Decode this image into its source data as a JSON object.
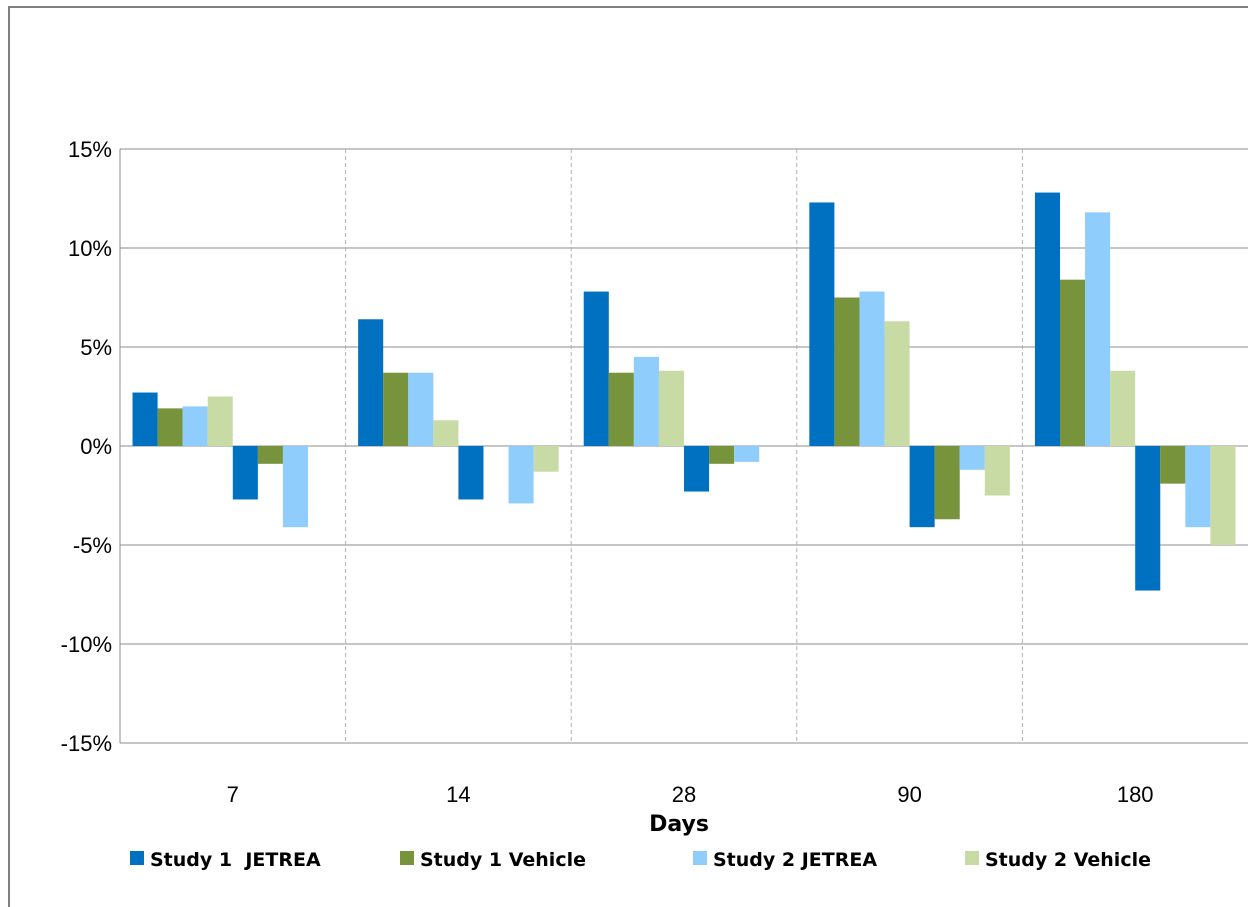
{
  "chart_data": {
    "type": "bar",
    "title": "",
    "xlabel": "Days",
    "ylabel": "",
    "categories": [
      "7",
      "14",
      "28",
      "90",
      "180"
    ],
    "ylim": [
      -15,
      15
    ],
    "ytick_values": [
      15,
      10,
      5,
      0,
      -5,
      -10,
      -15
    ],
    "ytick_labels": [
      "15%",
      "10%",
      "5%",
      "0%",
      "-5%",
      "-10%",
      "-15%"
    ],
    "grid": "horizontal major, vertical dashed category separators",
    "legend_position": "bottom",
    "bars_per_group": 8,
    "series": [
      {
        "name": "Study 1  JETREA",
        "color": "#0070c0",
        "positive": [
          2.7,
          6.4,
          7.8,
          12.3,
          12.8
        ],
        "negative": [
          -2.7,
          -2.7,
          -2.3,
          -4.1,
          -7.3
        ]
      },
      {
        "name": "Study 1 Vehicle",
        "color": "#77933c",
        "positive": [
          1.9,
          3.7,
          3.7,
          7.5,
          8.4
        ],
        "negative": [
          -0.9,
          null,
          -0.9,
          -3.7,
          -1.9
        ]
      },
      {
        "name": "Study 2 JETREA",
        "color": "#8ecdfc",
        "positive": [
          2.0,
          3.7,
          4.5,
          7.8,
          11.8
        ],
        "negative": [
          -4.1,
          -2.9,
          -0.8,
          -1.2,
          -4.1
        ]
      },
      {
        "name": "Study 2 Vehicle",
        "color": "#c9dba5",
        "positive": [
          2.5,
          1.3,
          3.8,
          6.3,
          3.8
        ],
        "negative": [
          null,
          -1.3,
          null,
          -2.5,
          -5.0
        ]
      }
    ]
  }
}
